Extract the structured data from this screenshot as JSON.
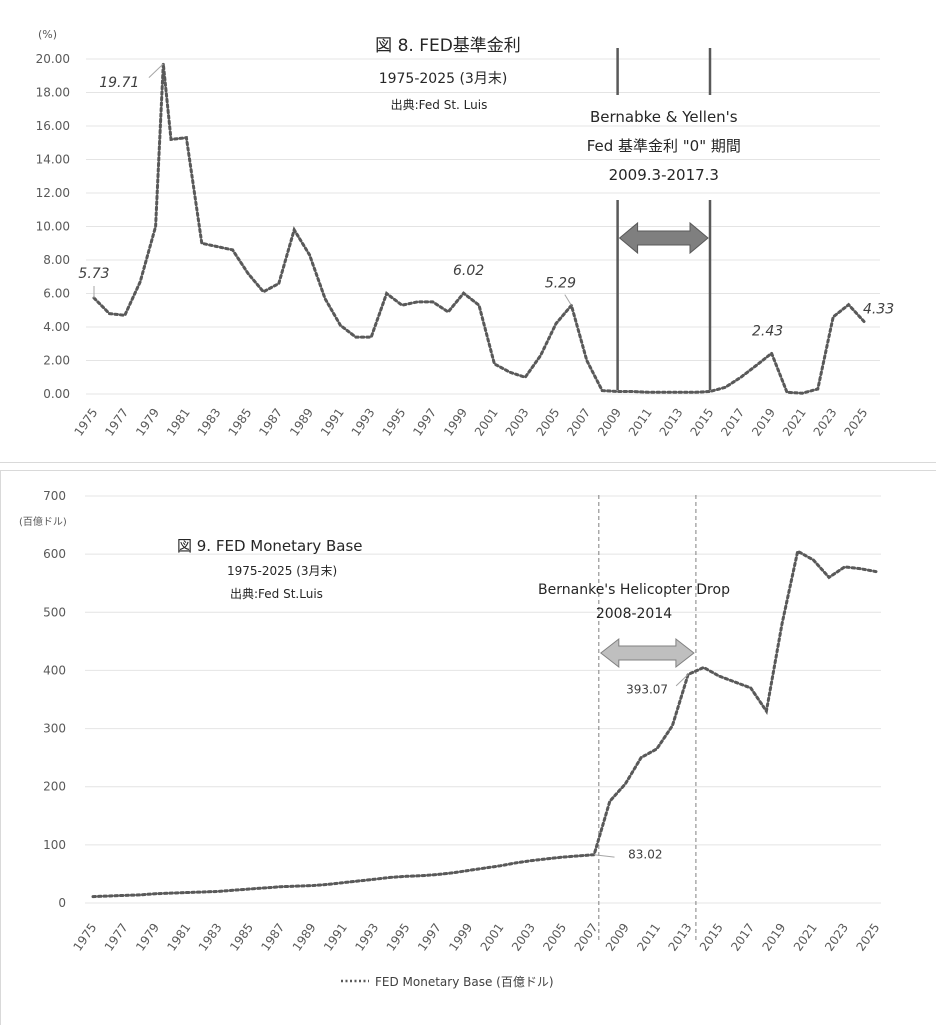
{
  "chart_data": [
    {
      "type": "line",
      "title": "図 8. FED基準金利",
      "subtitle": "1975-2025 (3月末)",
      "source": "出典:Fed St. Luis",
      "ylabel": "(%)",
      "ylim": [
        0,
        20
      ],
      "yticks": [
        "0.00",
        "2.00",
        "4.00",
        "6.00",
        "8.00",
        "10.00",
        "12.00",
        "14.00",
        "16.00",
        "18.00",
        "20.00"
      ],
      "xticks": [
        "1975",
        "1977",
        "1979",
        "1981",
        "1983",
        "1985",
        "1987",
        "1989",
        "1991",
        "1993",
        "1995",
        "1997",
        "1999",
        "2001",
        "2003",
        "2005",
        "2007",
        "2009",
        "2011",
        "2013",
        "2015",
        "2017",
        "2019",
        "2021",
        "2023",
        "2025"
      ],
      "x": [
        1975,
        1976,
        1977,
        1978,
        1979,
        1979.5,
        1980,
        1981,
        1982,
        1983,
        1984,
        1985,
        1986,
        1987,
        1988,
        1989,
        1990,
        1991,
        1992,
        1993,
        1994,
        1995,
        1996,
        1997,
        1998,
        1999,
        2000,
        2001,
        2002,
        2003,
        2004,
        2005,
        2006,
        2007,
        2008,
        2009,
        2010,
        2011,
        2012,
        2013,
        2014,
        2015,
        2016,
        2017,
        2018,
        2019,
        2020,
        2021,
        2022,
        2023,
        2024,
        2025
      ],
      "values": [
        5.73,
        4.8,
        4.7,
        6.7,
        10.0,
        19.71,
        15.2,
        15.3,
        9.0,
        8.8,
        8.6,
        7.2,
        6.1,
        6.6,
        9.8,
        8.3,
        5.7,
        4.1,
        3.4,
        3.4,
        6.0,
        5.3,
        5.5,
        5.5,
        4.9,
        6.02,
        5.3,
        1.8,
        1.3,
        1.0,
        2.3,
        4.2,
        5.29,
        2.0,
        0.2,
        0.15,
        0.15,
        0.1,
        0.1,
        0.1,
        0.1,
        0.15,
        0.4,
        1.0,
        1.7,
        2.43,
        0.1,
        0.05,
        0.3,
        4.6,
        5.33,
        4.33
      ],
      "data_labels": [
        {
          "text": "5.73",
          "x": 1975,
          "y": 5.73
        },
        {
          "text": "19.71",
          "x": 1979.5,
          "y": 19.71
        },
        {
          "text": "6.02",
          "x": 1999,
          "y": 6.02
        },
        {
          "text": "5.29",
          "x": 2006,
          "y": 5.29
        },
        {
          "text": "2.43",
          "x": 2019,
          "y": 2.43
        },
        {
          "text": "4.33",
          "x": 2025,
          "y": 4.33
        }
      ],
      "annotation": {
        "lines": [
          "Bernabke & Yellen's",
          "Fed 基準金利 \"0\"  期間",
          "2009.3-2017.3"
        ],
        "range": [
          2009,
          2015
        ]
      }
    },
    {
      "type": "line",
      "title": "図 9.  FED Monetary Base",
      "subtitle": "1975-2025 (3月末)",
      "source": "出典:Fed St.Luis",
      "ylabel": "(百億ドル)",
      "ylim": [
        0,
        700
      ],
      "yticks": [
        "0",
        "100",
        "200",
        "300",
        "400",
        "500",
        "600",
        "700"
      ],
      "xticks": [
        "1975",
        "1977",
        "1979",
        "1981",
        "1983",
        "1985",
        "1987",
        "1989",
        "1991",
        "1993",
        "1995",
        "1997",
        "1999",
        "2001",
        "2003",
        "2005",
        "2007",
        "2009",
        "2011",
        "2013",
        "2015",
        "2017",
        "2019",
        "2021",
        "2023",
        "2025"
      ],
      "x": [
        1975,
        1976,
        1977,
        1978,
        1979,
        1980,
        1981,
        1982,
        1983,
        1984,
        1985,
        1986,
        1987,
        1988,
        1989,
        1990,
        1991,
        1992,
        1993,
        1994,
        1995,
        1996,
        1997,
        1998,
        1999,
        2000,
        2001,
        2002,
        2003,
        2004,
        2005,
        2006,
        2007,
        2008,
        2009,
        2010,
        2011,
        2012,
        2013,
        2014,
        2015,
        2016,
        2017,
        2018,
        2019,
        2020,
        2021,
        2022,
        2023,
        2024,
        2025
      ],
      "values": [
        11,
        12,
        13,
        14,
        16,
        17,
        18,
        19,
        20,
        22,
        24,
        26,
        28,
        29,
        30,
        32,
        35,
        38,
        41,
        44,
        46,
        47,
        49,
        52,
        56,
        60,
        64,
        69,
        73,
        76,
        79,
        81,
        83.02,
        175,
        205,
        250,
        265,
        305,
        393.07,
        405,
        390,
        380,
        370,
        330,
        480,
        605,
        590,
        560,
        578,
        575,
        570
      ],
      "data_labels": [
        {
          "text": "83.02",
          "x": 2007,
          "y": 83.02
        },
        {
          "text": "393.07",
          "x": 2013,
          "y": 393.07
        }
      ],
      "annotation": {
        "lines": [
          "Bernanke's Helicopter Drop",
          "2008-2014"
        ],
        "range": [
          2007.3,
          2013.5
        ]
      },
      "legend": "FED Monetary Base    (百億ドル)"
    }
  ]
}
